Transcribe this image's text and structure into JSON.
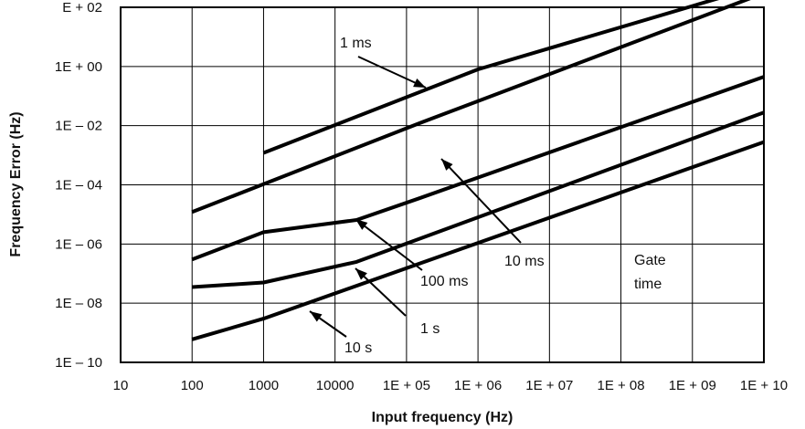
{
  "chart_data": {
    "type": "line",
    "title": "",
    "xlabel": "Input frequency (Hz)",
    "ylabel": "Frequency Error (Hz)",
    "x_scale": "log",
    "y_scale": "log",
    "xlim": [
      10,
      10000000000
    ],
    "ylim": [
      1e-10,
      100
    ],
    "grid": true,
    "x_tick_values": [
      10,
      100,
      1000,
      10000,
      100000,
      1000000,
      10000000,
      100000000,
      1000000000,
      10000000000
    ],
    "x_tick_labels": [
      "10",
      "100",
      "1000",
      "10000",
      "1E + 05",
      "1E + 06",
      "1E + 07",
      "1E + 08",
      "1E + 09",
      "1E + 10"
    ],
    "y_tick_values": [
      1e-10,
      1e-08,
      1e-06,
      0.0001,
      0.01,
      1,
      100
    ],
    "y_tick_labels": [
      "1E – 10",
      "1E – 08",
      "1E – 06",
      "1E – 04",
      "1E – 02",
      "1E + 00",
      "E + 02"
    ],
    "series": [
      {
        "name": "1 ms",
        "x": [
          1000,
          1000000,
          5000000000
        ],
        "y": [
          0.0012,
          0.8,
          350
        ]
      },
      {
        "name": "10 ms",
        "x": [
          100,
          150000,
          10000000000
        ],
        "y": [
          1.2e-05,
          0.012,
          300
        ]
      },
      {
        "name": "100 ms",
        "x": [
          100,
          1000,
          20000,
          150000,
          10000000000
        ],
        "y": [
          3e-07,
          2.5e-06,
          6.5e-06,
          3.5e-05,
          0.45
        ]
      },
      {
        "name": "1 s",
        "x": [
          100,
          1000,
          20000,
          10000000000
        ],
        "y": [
          3.5e-08,
          5e-08,
          2.5e-07,
          0.028
        ]
      },
      {
        "name": "10 s",
        "x": [
          100,
          1000,
          10000000000
        ],
        "y": [
          6e-10,
          3e-09,
          0.0028
        ]
      }
    ],
    "annotations": [
      {
        "text": "1 ms",
        "series": "1 ms"
      },
      {
        "text": "10 ms",
        "series": "10 ms"
      },
      {
        "text": "100 ms",
        "series": "100 ms"
      },
      {
        "text": "1 s",
        "series": "1 s"
      },
      {
        "text": "10 s",
        "series": "10 s"
      }
    ],
    "legend_note": [
      "Gate",
      "time"
    ]
  }
}
